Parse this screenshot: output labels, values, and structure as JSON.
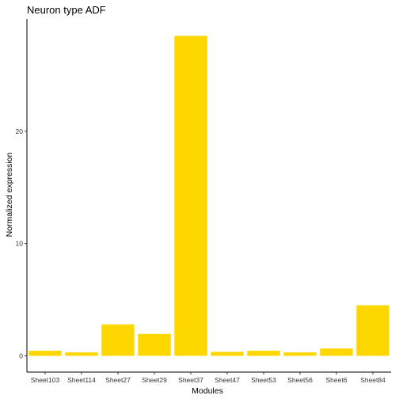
{
  "chart_data": {
    "type": "bar",
    "title": "Neuron type ADF",
    "xlabel": "Modules",
    "ylabel": "Normalized expression",
    "categories": [
      "Sheet103",
      "Sheet114",
      "Sheet27",
      "Sheet29",
      "Sheet37",
      "Sheet47",
      "Sheet53",
      "Sheet56",
      "Sheet6",
      "Sheet84"
    ],
    "values": [
      0.45,
      0.3,
      2.8,
      1.95,
      28.5,
      0.35,
      0.45,
      0.3,
      0.65,
      4.5
    ],
    "ylim": [
      -1.45,
      30.0
    ],
    "yticks": [
      0,
      10,
      20
    ],
    "bar_color": "#FFD700",
    "grid": false,
    "legend": "none"
  }
}
